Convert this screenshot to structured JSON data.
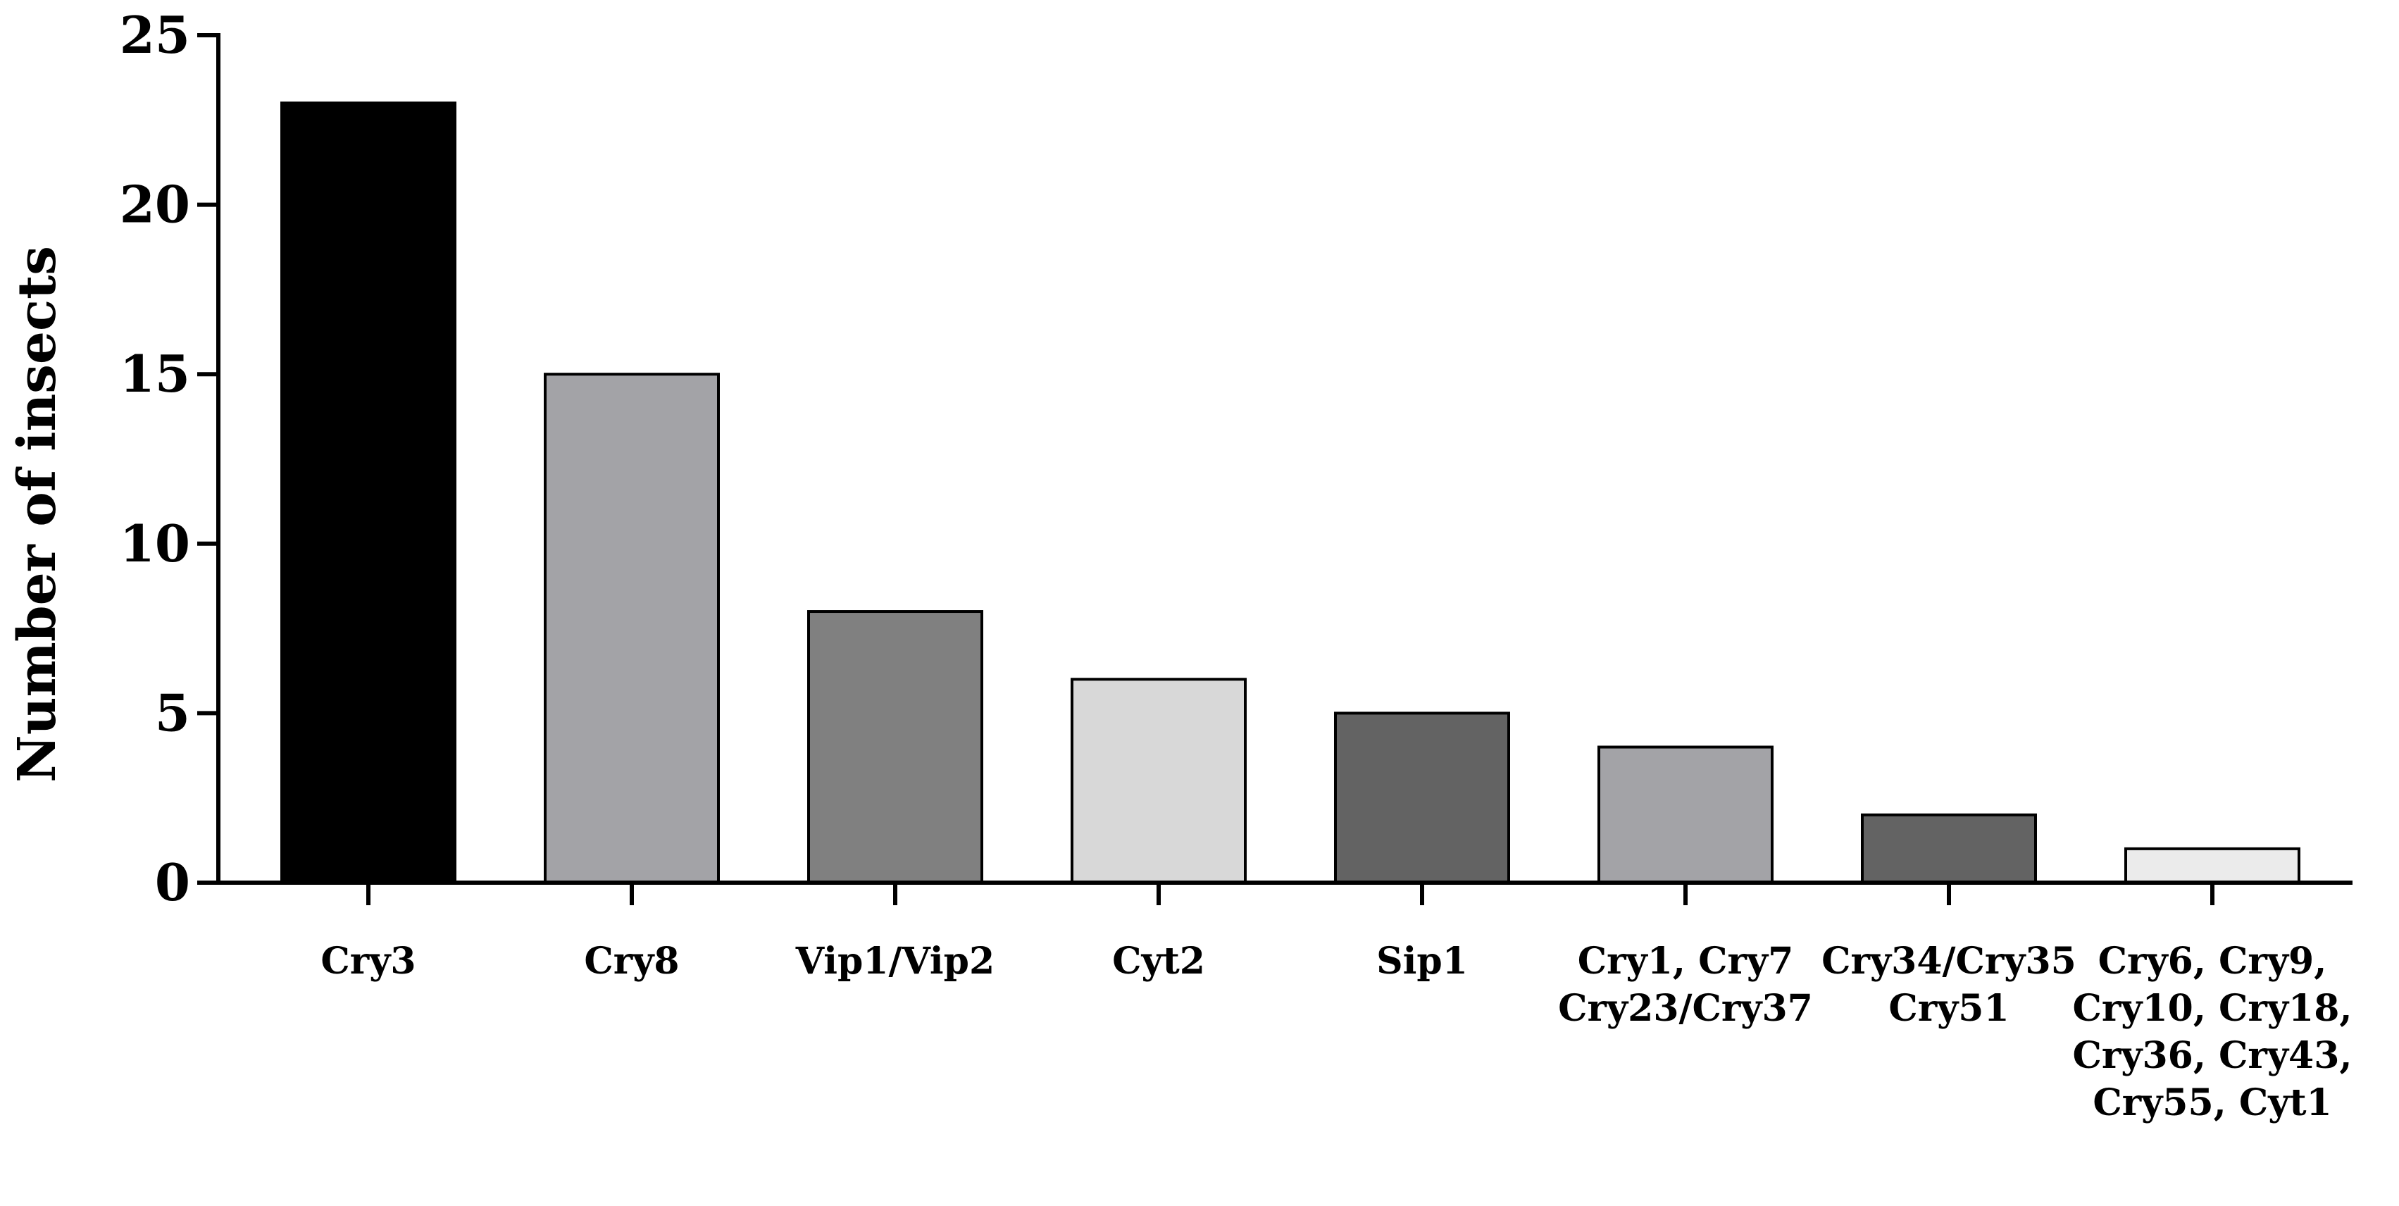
{
  "chart_data": {
    "type": "bar",
    "title": "",
    "xlabel": "",
    "ylabel": "Number of insects",
    "ylim": [
      0,
      25
    ],
    "yticks": [
      0,
      5,
      10,
      15,
      20,
      25
    ],
    "grid": false,
    "legend": "none",
    "categories": [
      [
        "Cry3"
      ],
      [
        "Cry8"
      ],
      [
        "Vip1/Vip2"
      ],
      [
        "Cyt2"
      ],
      [
        "Sip1"
      ],
      [
        "Cry1, Cry7",
        "Cry23/Cry37"
      ],
      [
        "Cry34/Cry35",
        "Cry51"
      ],
      [
        "Cry6, Cry9,",
        "Cry10, Cry18,",
        "Cry36, Cry43,",
        "Cry55, Cyt1"
      ]
    ],
    "values": [
      23,
      15,
      8,
      6,
      5,
      4,
      2,
      1
    ],
    "colors": [
      "#000000",
      "#a3a3a7",
      "#808080",
      "#d8d8d8",
      "#636363",
      "#a3a3a7",
      "#636363",
      "#ebebeb"
    ]
  }
}
